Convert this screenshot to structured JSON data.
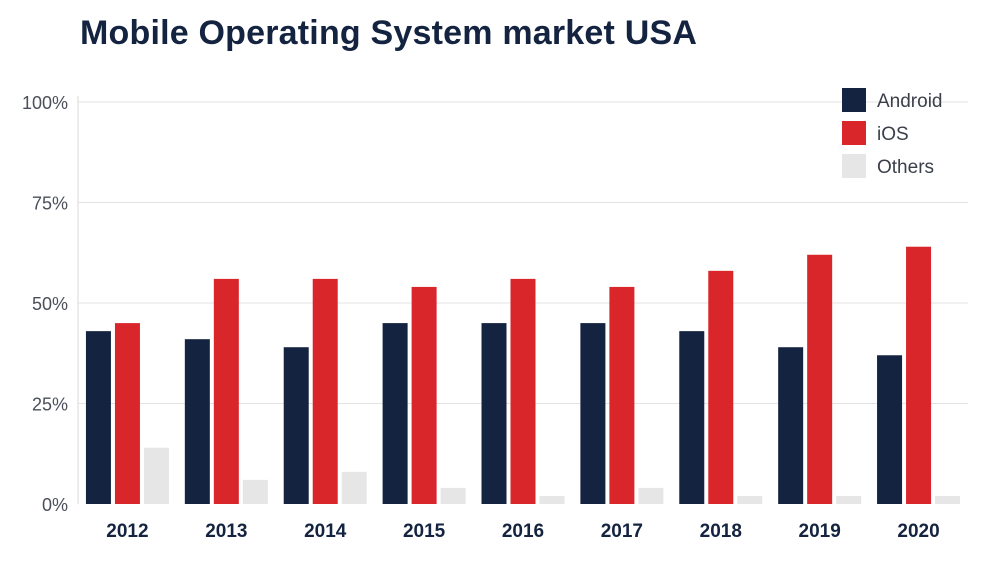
{
  "title": "Mobile Operating System market USA",
  "chart_data": {
    "type": "bar",
    "title": "Mobile Operating System market USA",
    "xlabel": "",
    "ylabel": "",
    "ylim": [
      0,
      100
    ],
    "yticks": [
      0,
      25,
      50,
      75,
      100
    ],
    "ytick_labels": [
      "0%",
      "25%",
      "50%",
      "75%",
      "100%"
    ],
    "categories": [
      "2012",
      "2013",
      "2014",
      "2015",
      "2016",
      "2017",
      "2018",
      "2019",
      "2020"
    ],
    "series": [
      {
        "name": "Android",
        "color": "#142340",
        "values": [
          43,
          41,
          39,
          45,
          45,
          45,
          43,
          39,
          37
        ]
      },
      {
        "name": "iOS",
        "color": "#d9262b",
        "values": [
          45,
          56,
          56,
          54,
          56,
          54,
          58,
          62,
          64
        ]
      },
      {
        "name": "Others",
        "color": "#e6e6e6",
        "values": [
          14,
          6,
          8,
          4,
          2,
          4,
          2,
          2,
          2
        ]
      }
    ],
    "legend_position": "top-right",
    "grid": "horizontal"
  }
}
